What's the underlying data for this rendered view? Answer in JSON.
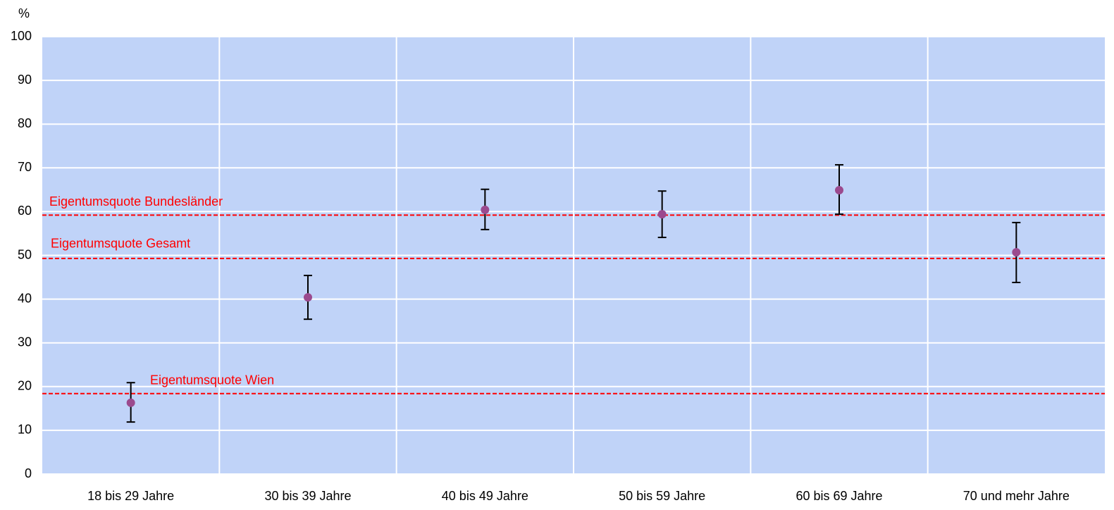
{
  "chart_data": {
    "type": "errorbar",
    "y_axis_label": "%",
    "categories": [
      "18 bis 29 Jahre",
      "30 bis 39 Jahre",
      "40 bis 49 Jahre",
      "50 bis 59 Jahre",
      "60 bis 69 Jahre",
      "70 und mehr Jahre"
    ],
    "values": [
      16.3,
      40.4,
      60.4,
      59.4,
      64.9,
      50.7
    ],
    "lower": [
      11.9,
      35.4,
      55.9,
      54.1,
      59.4,
      43.8
    ],
    "upper": [
      20.9,
      45.4,
      65.1,
      64.7,
      70.7,
      57.5
    ],
    "color": "#9b4a8e",
    "error_color": "#000000",
    "reference_lines": [
      {
        "label": "Eigentumsquote Bundesländer",
        "value": 59.2
      },
      {
        "label": "Eigentumsquote Gesamt",
        "value": 49.3
      },
      {
        "label": "Eigentumsquote Wien",
        "value": 18.4
      }
    ],
    "reference_color": "#ff0000",
    "ylim": [
      0,
      100
    ],
    "yticks": [
      0,
      10,
      20,
      30,
      40,
      50,
      60,
      70,
      80,
      90,
      100
    ],
    "grid": true,
    "background": "#c0d3f8"
  }
}
